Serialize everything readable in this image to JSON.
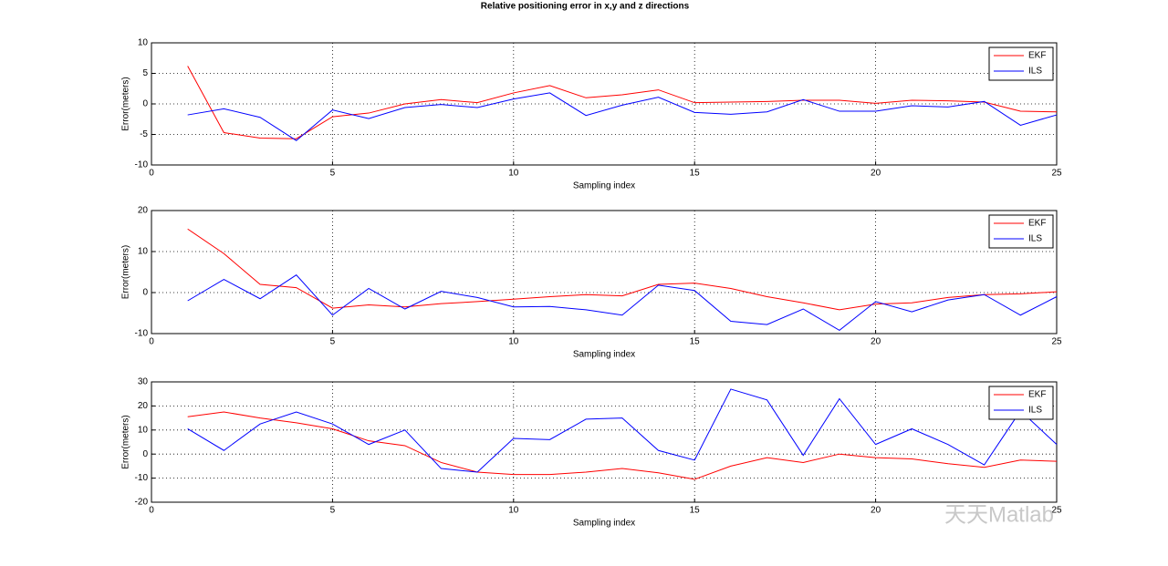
{
  "chart_data": [
    {
      "type": "line",
      "title": "Relative positioning error in x,y and z directions",
      "x_label": "Sampling index",
      "y_label": "Error(meters)",
      "x": [
        1,
        2,
        3,
        4,
        5,
        6,
        7,
        8,
        9,
        10,
        11,
        12,
        13,
        14,
        15,
        16,
        17,
        18,
        19,
        20,
        21,
        22,
        23,
        24,
        25
      ],
      "series": [
        {
          "name": "EKF",
          "color": "#ff0000",
          "values": [
            6.2,
            -4.7,
            -5.6,
            -5.7,
            -2.1,
            -1.5,
            0,
            0.7,
            0.2,
            1.8,
            3,
            1,
            1.5,
            2.3,
            0.2,
            0.3,
            0.4,
            0.6,
            0.6,
            0.1,
            0.6,
            0.5,
            0.3,
            -1.2,
            -1.3
          ]
        },
        {
          "name": "ILS",
          "color": "#0000ff",
          "values": [
            -1.8,
            -0.8,
            -2.2,
            -6,
            -1,
            -2.4,
            -0.6,
            -0.1,
            -0.6,
            0.8,
            1.8,
            -1.9,
            -0.2,
            1.1,
            -1.4,
            -1.7,
            -1.3,
            0.7,
            -1.2,
            -1.2,
            -0.3,
            -0.5,
            0.4,
            -3.5,
            -1.8
          ]
        }
      ],
      "xlim": [
        0,
        25
      ],
      "xticks": [
        0,
        5,
        10,
        15,
        20,
        25
      ],
      "ylim": [
        -10,
        10
      ],
      "yticks": [
        -10,
        -5,
        0,
        5,
        10
      ],
      "grid": true,
      "legend": "upper-right"
    },
    {
      "type": "line",
      "x_label": "Sampling index",
      "y_label": "Error(meters)",
      "x": [
        1,
        2,
        3,
        4,
        5,
        6,
        7,
        8,
        9,
        10,
        11,
        12,
        13,
        14,
        15,
        16,
        17,
        18,
        19,
        20,
        21,
        22,
        23,
        24,
        25
      ],
      "series": [
        {
          "name": "EKF",
          "color": "#ff0000",
          "values": [
            15.5,
            9.5,
            2,
            1.2,
            -3.8,
            -3,
            -3.5,
            -2.7,
            -2.2,
            -1.6,
            -1,
            -0.5,
            -0.8,
            2,
            2.3,
            1,
            -1,
            -2.5,
            -4.2,
            -2.8,
            -2.5,
            -1.2,
            -0.5,
            -0.3,
            0.2
          ]
        },
        {
          "name": "ILS",
          "color": "#0000ff",
          "values": [
            -2,
            3.2,
            -1.5,
            4.3,
            -5.5,
            1,
            -4,
            0.3,
            -1.2,
            -3.5,
            -3.4,
            -4.2,
            -5.5,
            1.8,
            0.5,
            -7,
            -7.8,
            -4,
            -9.2,
            -2.2,
            -4.7,
            -1.8,
            -0.5,
            -5.5,
            -1
          ]
        }
      ],
      "xlim": [
        0,
        25
      ],
      "xticks": [
        0,
        5,
        10,
        15,
        20,
        25
      ],
      "ylim": [
        -10,
        20
      ],
      "yticks": [
        -10,
        0,
        10,
        20
      ],
      "grid": true,
      "legend": "upper-right"
    },
    {
      "type": "line",
      "x_label": "Sampling index",
      "y_label": "Error(meters)",
      "x": [
        1,
        2,
        3,
        4,
        5,
        6,
        7,
        8,
        9,
        10,
        11,
        12,
        13,
        14,
        15,
        16,
        17,
        18,
        19,
        20,
        21,
        22,
        23,
        24,
        25
      ],
      "series": [
        {
          "name": "EKF",
          "color": "#ff0000",
          "values": [
            15.5,
            17.5,
            15,
            13,
            10.5,
            5.5,
            3.5,
            -3.5,
            -7.5,
            -8.5,
            -8.5,
            -7.5,
            -6,
            -7.8,
            -10.5,
            -5,
            -1.5,
            -3.5,
            0,
            -1.5,
            -2,
            -4,
            -5.5,
            -2.5,
            -3
          ]
        },
        {
          "name": "ILS",
          "color": "#0000ff",
          "values": [
            10.5,
            1.5,
            12.5,
            17.5,
            12.5,
            4,
            10,
            -6,
            -7.5,
            6.5,
            6,
            14.5,
            15,
            1.5,
            -2.5,
            27,
            22.5,
            -0.5,
            23,
            4,
            10.5,
            4,
            -4.5,
            18,
            4
          ]
        }
      ],
      "xlim": [
        0,
        25
      ],
      "xticks": [
        0,
        5,
        10,
        15,
        20,
        25
      ],
      "ylim": [
        -20,
        30
      ],
      "yticks": [
        -20,
        -10,
        0,
        10,
        20,
        30
      ],
      "grid": true,
      "legend": "upper-right"
    }
  ],
  "watermark": "天天Matlab"
}
